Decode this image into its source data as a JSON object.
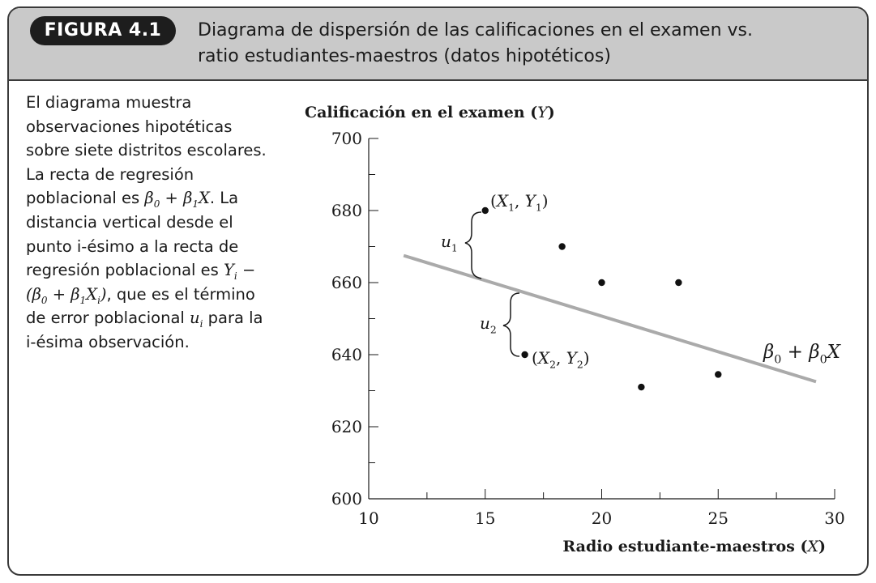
{
  "figure": {
    "label": "FIGURA 4.1",
    "title_line1": "Diagrama de dispersión de las calificaciones en el examen vs.",
    "title_line2": "ratio estudiantes-maestros (datos hipotéticos)"
  },
  "description": {
    "p1": "El diagrama muestra observaciones hipotéticas sobre siete distritos escolares. La recta de regresión poblacional es ",
    "p2": ". La distancia vertical desde el punto i-ésimo a la recta de regresión poblacional es ",
    "p3": ", que es el término de error poblacional ",
    "p4": " para la i-ésima observación."
  },
  "chart_data": {
    "type": "scatter",
    "ylabel": "Calificación en el examen (Y)",
    "xlabel": "Radio estudiante-maestros (X)",
    "xlim": [
      10,
      30
    ],
    "ylim": [
      600,
      700
    ],
    "xticks": [
      10,
      15,
      20,
      25,
      30
    ],
    "yticks": [
      600,
      620,
      640,
      660,
      680,
      700
    ],
    "points": [
      {
        "x": 15.0,
        "y": 680
      },
      {
        "x": 16.7,
        "y": 640
      },
      {
        "x": 18.3,
        "y": 670
      },
      {
        "x": 20.0,
        "y": 660
      },
      {
        "x": 21.7,
        "y": 631
      },
      {
        "x": 23.3,
        "y": 660
      },
      {
        "x": 25.0,
        "y": 634.5
      }
    ],
    "regression_line": {
      "x": [
        11.5,
        29.2
      ],
      "y": [
        667.5,
        632.5
      ],
      "label": "β0 + β0X",
      "color": "#aaaaaa"
    },
    "annotations": {
      "point1_label": "(X1, Y1)",
      "point2_label": "(X2, Y2)",
      "u1": "u1",
      "u2": "u2"
    }
  }
}
